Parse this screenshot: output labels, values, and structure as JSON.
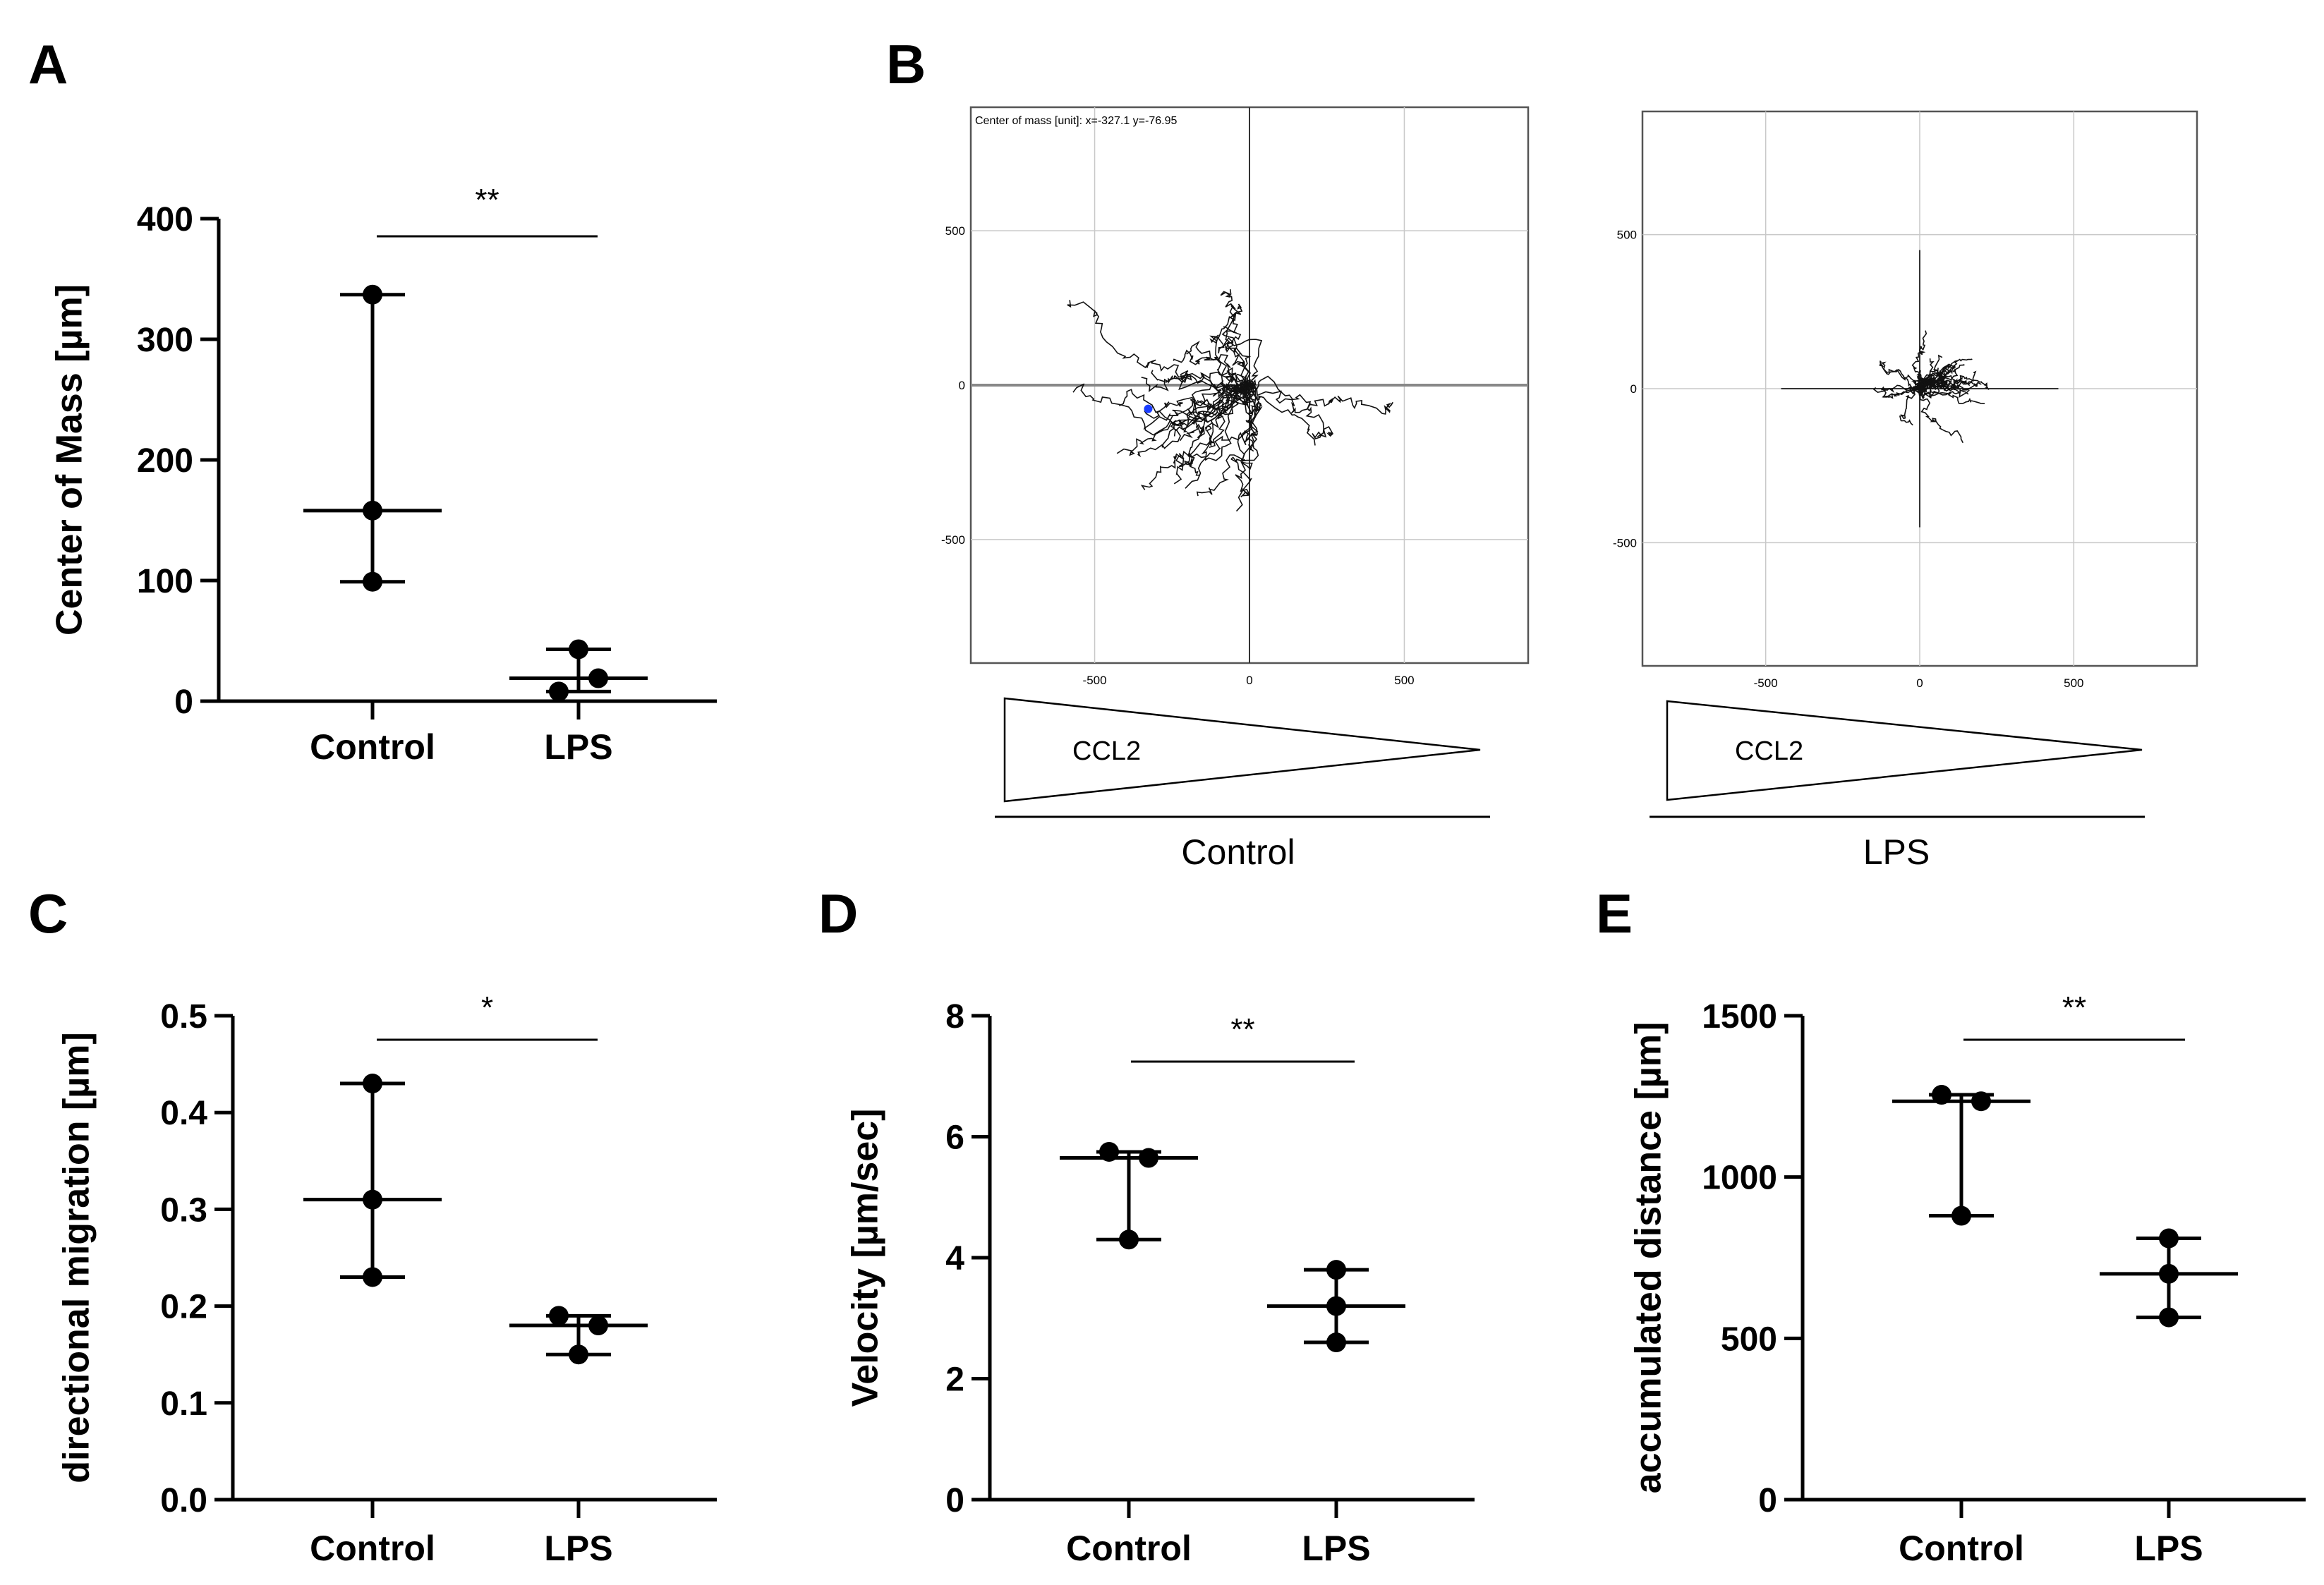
{
  "chart_data": [
    {
      "panel": "A",
      "type": "scatter",
      "title": "",
      "ylabel": "Center of Mass [µm]",
      "xlabel": "",
      "ylim": [
        0,
        400
      ],
      "yticks": [
        "0",
        "100",
        "200",
        "300",
        "400"
      ],
      "ytick_values": [
        0,
        100,
        200,
        300,
        400
      ],
      "categories": [
        "Control",
        "LPS"
      ],
      "groups": [
        {
          "name": "Control",
          "points": [
            337,
            158,
            99
          ],
          "median": 158,
          "min": 99,
          "max": 337
        },
        {
          "name": "LPS",
          "points": [
            43,
            19,
            8
          ],
          "median": 19,
          "min": 8,
          "max": 43
        }
      ],
      "significance": "**"
    },
    {
      "panel": "C",
      "type": "scatter",
      "ylabel": "directional migration [µm]",
      "ylim": [
        0,
        0.5
      ],
      "yticks": [
        "0.0",
        "0.1",
        "0.2",
        "0.3",
        "0.4",
        "0.5"
      ],
      "ytick_values": [
        0,
        0.1,
        0.2,
        0.3,
        0.4,
        0.5
      ],
      "categories": [
        "Control",
        "LPS"
      ],
      "groups": [
        {
          "name": "Control",
          "points": [
            0.43,
            0.31,
            0.23
          ],
          "median": 0.31,
          "min": 0.23,
          "max": 0.43
        },
        {
          "name": "LPS",
          "points": [
            0.19,
            0.18,
            0.15
          ],
          "median": 0.18,
          "min": 0.15,
          "max": 0.19
        }
      ],
      "significance": "*"
    },
    {
      "panel": "D",
      "type": "scatter",
      "ylabel": "Velocity [µm/sec]",
      "ylim": [
        0,
        8
      ],
      "yticks": [
        "0",
        "2",
        "4",
        "6",
        "8"
      ],
      "ytick_values": [
        0,
        2,
        4,
        6,
        8
      ],
      "categories": [
        "Control",
        "LPS"
      ],
      "groups": [
        {
          "name": "Control",
          "points": [
            5.75,
            5.65,
            4.3
          ],
          "median": 5.65,
          "min": 4.3,
          "max": 5.75
        },
        {
          "name": "LPS",
          "points": [
            3.8,
            3.2,
            2.6
          ],
          "median": 3.2,
          "min": 2.6,
          "max": 3.8
        }
      ],
      "significance": "**"
    },
    {
      "panel": "E",
      "type": "scatter",
      "ylabel": "accumulated distance [µm]",
      "ylim": [
        0,
        1500
      ],
      "yticks": [
        "0",
        "500",
        "1000",
        "1500"
      ],
      "ytick_values": [
        0,
        500,
        1000,
        1500
      ],
      "categories": [
        "Control",
        "LPS"
      ],
      "groups": [
        {
          "name": "Control",
          "points": [
            1255,
            1235,
            880
          ],
          "median": 1235,
          "min": 880,
          "max": 1255
        },
        {
          "name": "LPS",
          "points": [
            810,
            700,
            565
          ],
          "median": 700,
          "min": 565,
          "max": 810
        }
      ],
      "significance": "**"
    },
    {
      "panel": "B",
      "type": "line",
      "subplots": [
        {
          "name": "Control",
          "caption": "Control",
          "annotation": "Center of mass [unit]: x=-327.1 y=-76.95",
          "xlim": [
            -900,
            900
          ],
          "ylim": [
            -900,
            900
          ],
          "xticks": [
            "-500",
            "0",
            "500"
          ],
          "xtick_values": [
            -500,
            0,
            500
          ],
          "yticks": [
            "500",
            "0",
            "-500"
          ],
          "ytick_values": [
            500,
            0,
            -500
          ],
          "gradient_label": "CCL2",
          "center_of_mass": [
            -327.1,
            -76.95
          ]
        },
        {
          "name": "LPS",
          "caption": "LPS",
          "annotation": "",
          "xlim": [
            -900,
            900
          ],
          "ylim": [
            -900,
            900
          ],
          "xticks": [
            "-500",
            "0",
            "500"
          ],
          "xtick_values": [
            -500,
            0,
            500
          ],
          "yticks": [
            "500",
            "0",
            "-500"
          ],
          "ytick_values": [
            500,
            0,
            -500
          ],
          "gradient_label": "CCL2"
        }
      ]
    }
  ],
  "panel_letters": {
    "A": "A",
    "B": "B",
    "C": "C",
    "D": "D",
    "E": "E"
  },
  "colors": {
    "ink": "#000000",
    "grid": "#c8c8c8",
    "frame": "#555555",
    "marker": "#1a3cff"
  }
}
